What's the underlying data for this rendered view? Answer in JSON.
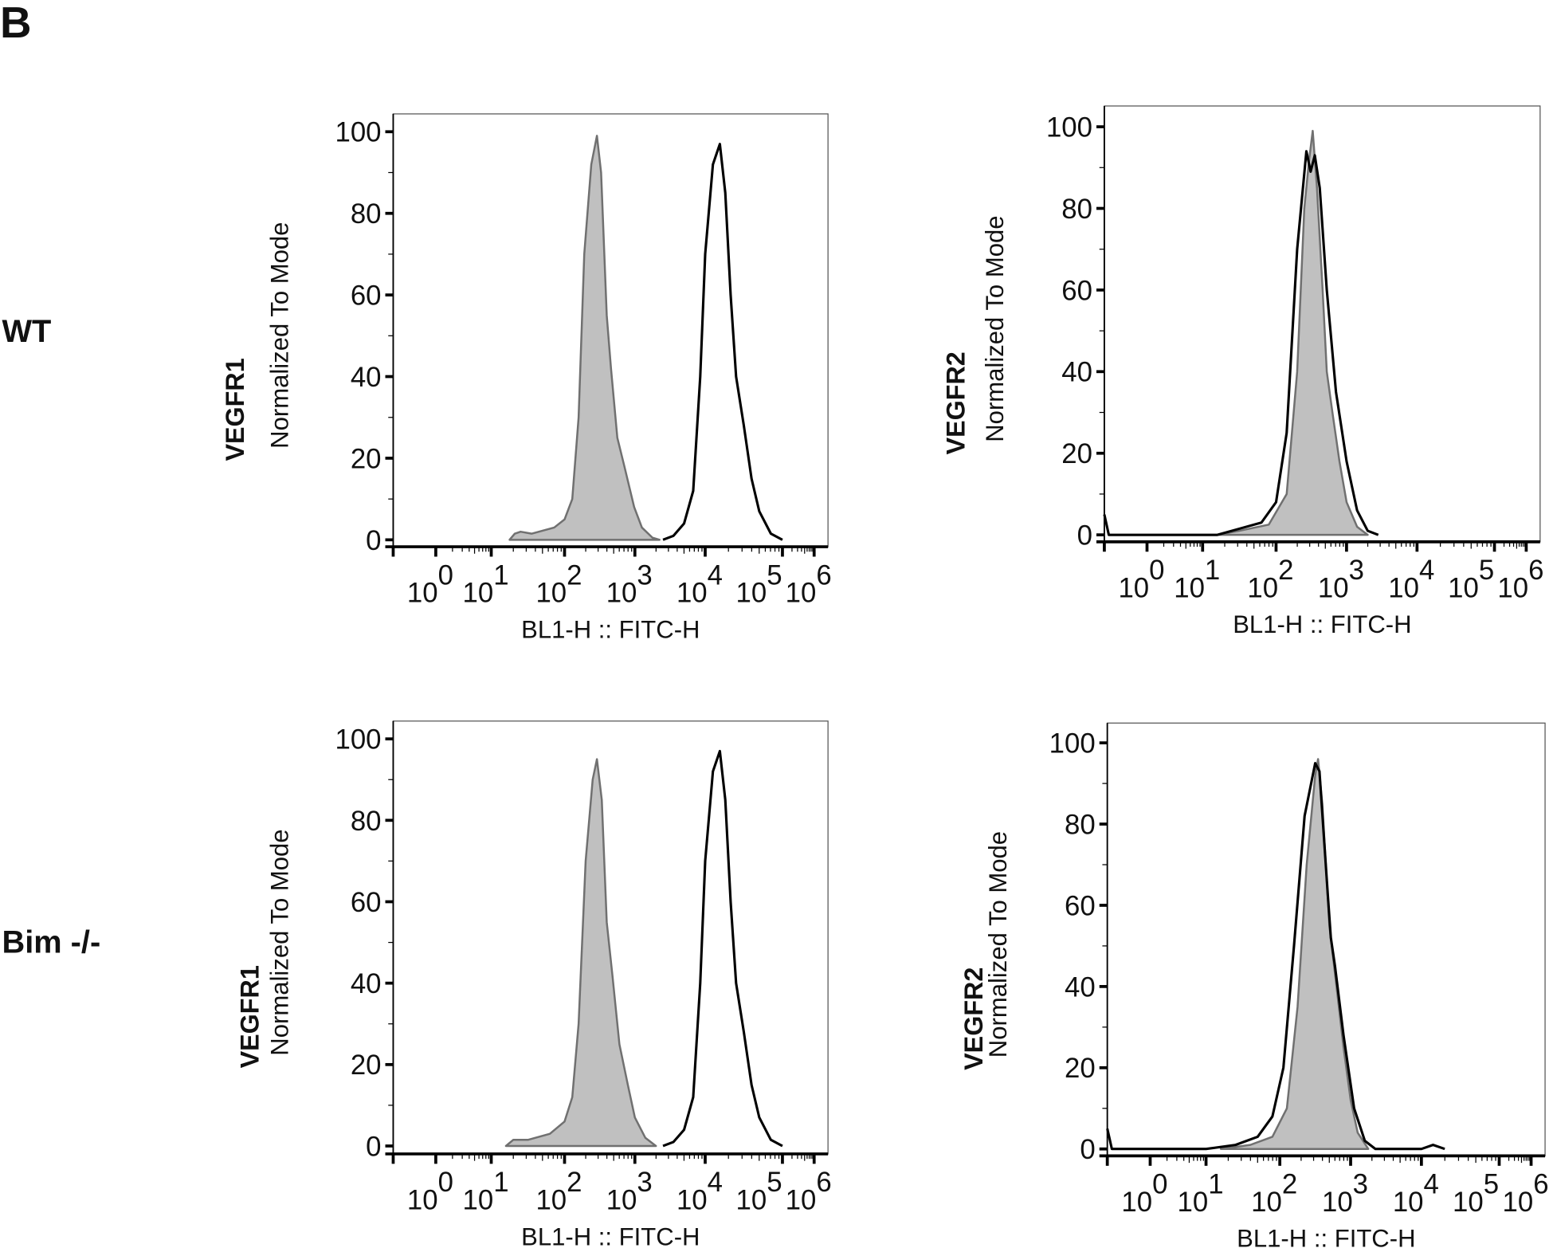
{
  "figure_label": "B",
  "row_labels": [
    "WT",
    "Bim -/-"
  ],
  "colors": {
    "control_fill": "#c0c0c0",
    "control_stroke": "#707070",
    "sample_stroke": "#000000"
  },
  "chart_data": [
    {
      "type": "area",
      "row": "WT",
      "marker": "VEGFR1",
      "ylabel": "Normalized To Mode",
      "xlabel": "BL1-H :: FITC-H",
      "x_scale": "log (biexponential)",
      "xlim_log10": [
        -0.95,
        6.3
      ],
      "ylim": [
        0,
        100
      ],
      "yticks": [
        0,
        20,
        40,
        60,
        80,
        100
      ],
      "xticks": [
        {
          "base": "10",
          "exp": "0"
        },
        {
          "base": "10",
          "exp": "1"
        },
        {
          "base": "10",
          "exp": "2"
        },
        {
          "base": "10",
          "exp": "3"
        },
        {
          "base": "10",
          "exp": "4"
        },
        {
          "base": "10",
          "exp": "5"
        },
        {
          "base": "10",
          "exp": "6"
        }
      ],
      "series": [
        {
          "style": "filled",
          "x_log10": [
            1.25,
            1.32,
            1.4,
            1.55,
            1.86,
            2.0,
            2.11,
            2.2,
            2.28,
            2.38,
            2.46,
            2.52,
            2.6,
            2.66,
            2.75,
            2.85,
            2.99,
            3.1,
            3.25,
            3.35
          ],
          "y": [
            0,
            1.5,
            2,
            1.5,
            3,
            5,
            10,
            30,
            70,
            92,
            99,
            90,
            55,
            42,
            25,
            18,
            8,
            3,
            0.5,
            0
          ]
        },
        {
          "style": "outline",
          "x_log10": [
            3.4,
            3.55,
            3.7,
            3.83,
            3.93,
            4.0,
            4.1,
            4.19,
            4.26,
            4.33,
            4.4,
            4.5,
            4.6,
            4.7,
            4.85,
            5.0
          ],
          "y": [
            0,
            1,
            4,
            12,
            40,
            70,
            92,
            97,
            85,
            60,
            40,
            28,
            15,
            7,
            1.5,
            0
          ]
        }
      ]
    },
    {
      "type": "area",
      "row": "WT",
      "marker": "VEGFR2",
      "ylabel": "Normalized To Mode",
      "xlabel": "BL1-H :: FITC-H",
      "x_scale": "log (biexponential)",
      "xlim_log10": [
        -0.95,
        6.3
      ],
      "ylim": [
        0,
        100
      ],
      "yticks": [
        0,
        20,
        40,
        60,
        80,
        100
      ],
      "xticks": [
        {
          "base": "10",
          "exp": "0"
        },
        {
          "base": "10",
          "exp": "1"
        },
        {
          "base": "10",
          "exp": "2"
        },
        {
          "base": "10",
          "exp": "3"
        },
        {
          "base": "10",
          "exp": "4"
        },
        {
          "base": "10",
          "exp": "5"
        },
        {
          "base": "10",
          "exp": "6"
        }
      ],
      "series": [
        {
          "style": "filled",
          "x_log10": [
            1.2,
            1.5,
            1.9,
            2.15,
            2.3,
            2.4,
            2.47,
            2.52,
            2.58,
            2.66,
            2.72,
            2.8,
            2.9,
            3.0,
            3.15,
            3.3
          ],
          "y": [
            0,
            1,
            2.5,
            10,
            40,
            80,
            92,
            99,
            85,
            60,
            40,
            30,
            18,
            8,
            2,
            0
          ]
        },
        {
          "style": "outline",
          "x_log10": [
            -0.95,
            -0.85,
            1.2,
            1.5,
            1.8,
            2.0,
            2.15,
            2.3,
            2.43,
            2.49,
            2.55,
            2.62,
            2.72,
            2.85,
            3.0,
            3.15,
            3.3,
            3.45
          ],
          "y": [
            5,
            0,
            0,
            1.5,
            3,
            8,
            25,
            70,
            94,
            89,
            93,
            85,
            60,
            35,
            18,
            6,
            1,
            0
          ]
        }
      ]
    },
    {
      "type": "area",
      "row": "Bim -/-",
      "marker": "VEGFR1",
      "ylabel": "Normalized To Mode",
      "xlabel": "BL1-H :: FITC-H",
      "x_scale": "log (biexponential)",
      "xlim_log10": [
        -0.95,
        6.3
      ],
      "ylim": [
        0,
        100
      ],
      "yticks": [
        0,
        20,
        40,
        60,
        80,
        100
      ],
      "xticks": [
        {
          "base": "10",
          "exp": "0"
        },
        {
          "base": "10",
          "exp": "1"
        },
        {
          "base": "10",
          "exp": "2"
        },
        {
          "base": "10",
          "exp": "3"
        },
        {
          "base": "10",
          "exp": "4"
        },
        {
          "base": "10",
          "exp": "5"
        },
        {
          "base": "10",
          "exp": "6"
        }
      ],
      "series": [
        {
          "style": "filled",
          "x_log10": [
            1.2,
            1.3,
            1.5,
            1.8,
            2.0,
            2.11,
            2.2,
            2.3,
            2.4,
            2.46,
            2.53,
            2.6,
            2.68,
            2.78,
            2.9,
            3.0,
            3.15,
            3.3
          ],
          "y": [
            0,
            1.5,
            1.5,
            3,
            6,
            12,
            30,
            70,
            90,
            95,
            85,
            55,
            42,
            25,
            15,
            7,
            2,
            0
          ]
        },
        {
          "style": "outline",
          "x_log10": [
            3.4,
            3.55,
            3.7,
            3.83,
            3.93,
            4.0,
            4.1,
            4.19,
            4.26,
            4.33,
            4.4,
            4.5,
            4.6,
            4.7,
            4.85,
            5.0
          ],
          "y": [
            0,
            1,
            4,
            12,
            40,
            70,
            92,
            97,
            85,
            60,
            40,
            28,
            15,
            7,
            1.5,
            0
          ]
        }
      ]
    },
    {
      "type": "area",
      "row": "Bim -/-",
      "marker": "VEGFR2",
      "ylabel": "Normalized To Mode",
      "xlabel": "BL1-H :: FITC-H",
      "x_scale": "log (biexponential)",
      "xlim_log10": [
        -0.95,
        6.3
      ],
      "ylim": [
        0,
        100
      ],
      "yticks": [
        0,
        20,
        40,
        60,
        80,
        100
      ],
      "xticks": [
        {
          "base": "10",
          "exp": "0"
        },
        {
          "base": "10",
          "exp": "1"
        },
        {
          "base": "10",
          "exp": "2"
        },
        {
          "base": "10",
          "exp": "3"
        },
        {
          "base": "10",
          "exp": "4"
        },
        {
          "base": "10",
          "exp": "5"
        },
        {
          "base": "10",
          "exp": "6"
        }
      ],
      "series": [
        {
          "style": "filled",
          "x_log10": [
            1.2,
            1.6,
            1.9,
            2.1,
            2.25,
            2.38,
            2.5,
            2.54,
            2.6,
            2.7,
            2.8,
            2.9,
            3.0,
            3.1,
            3.25
          ],
          "y": [
            0,
            1,
            3,
            10,
            35,
            70,
            92,
            96,
            85,
            55,
            40,
            25,
            12,
            4,
            0
          ]
        },
        {
          "style": "outline",
          "x_log10": [
            -0.95,
            -0.85,
            1.0,
            1.4,
            1.7,
            1.9,
            2.05,
            2.2,
            2.35,
            2.5,
            2.56,
            2.68,
            2.72,
            2.78,
            2.9,
            3.05,
            3.2,
            3.35,
            4.0,
            4.15,
            4.3
          ],
          "y": [
            5,
            0,
            0,
            1,
            3,
            8,
            20,
            50,
            82,
            95,
            93,
            62,
            52,
            45,
            28,
            10,
            2,
            0,
            0,
            1,
            0
          ]
        }
      ]
    }
  ]
}
